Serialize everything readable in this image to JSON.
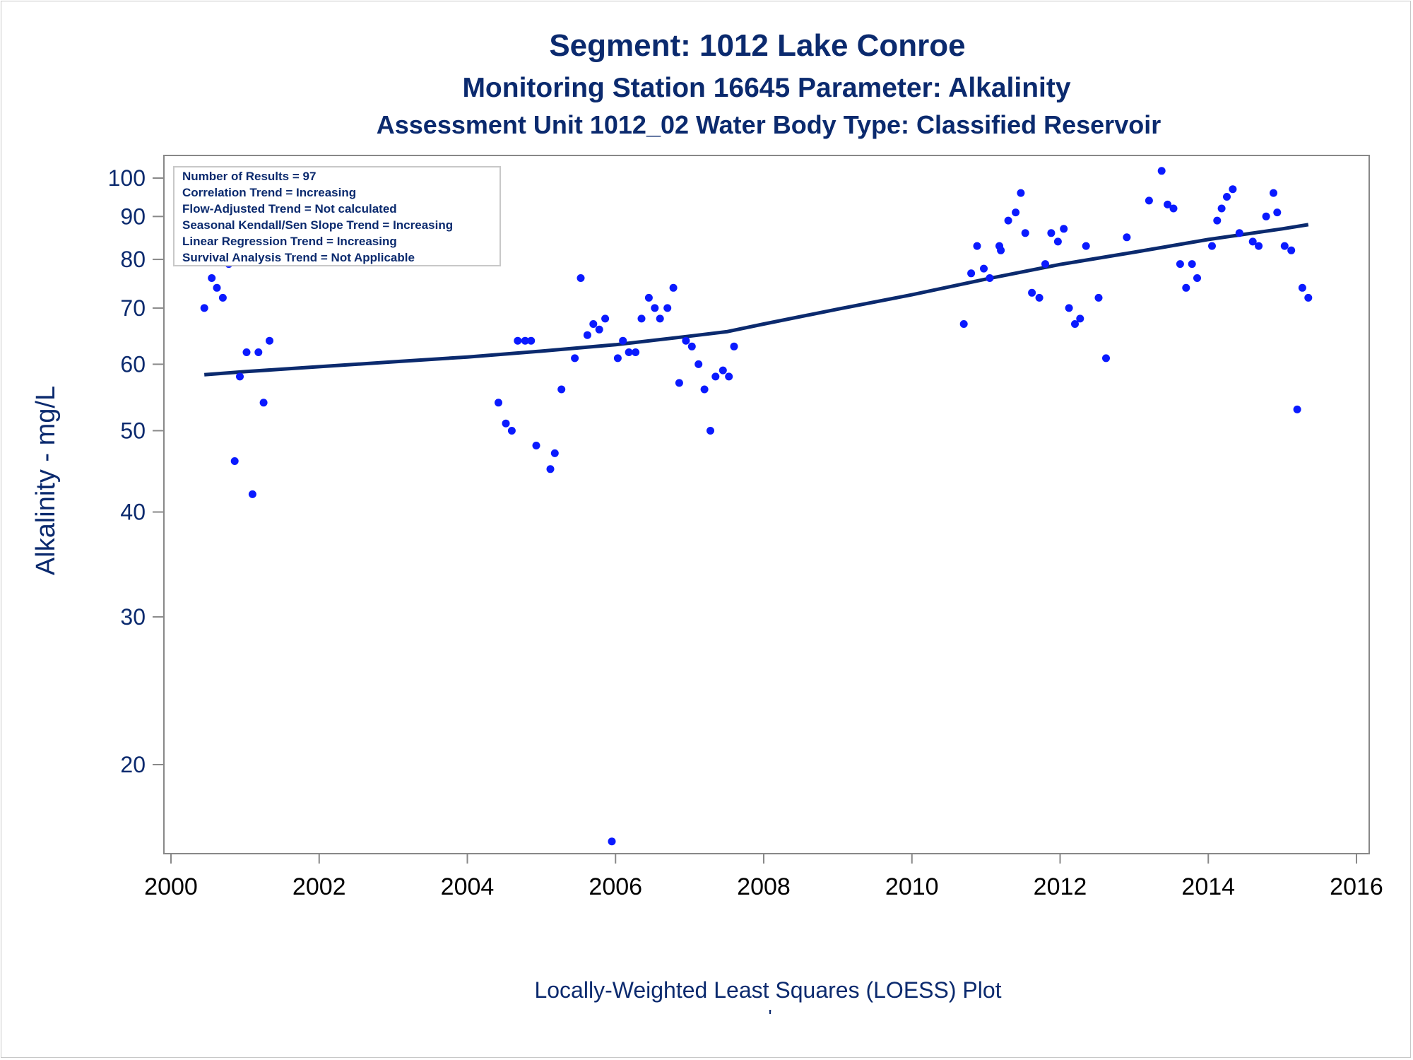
{
  "chart_data": {
    "type": "scatter",
    "title": "Segment: 1012  Lake Conroe",
    "subtitle_1": "Monitoring Station 16645 Parameter: Alkalinity",
    "subtitle_2": "Assessment Unit 1012_02   Water Body Type: Classified Reservoir",
    "ylabel": "Alkalinity - mg/L",
    "footnote": "Locally-Weighted Least Squares (LOESS) Plot",
    "footnote_mark": "'",
    "y_scale": "log",
    "xlim": [
      2000,
      2016
    ],
    "ylim": [
      16,
      105
    ],
    "x_ticks": [
      2000,
      2002,
      2004,
      2006,
      2008,
      2010,
      2012,
      2014,
      2016
    ],
    "y_ticks": [
      20,
      30,
      40,
      50,
      60,
      70,
      80,
      90,
      100
    ],
    "grid": false,
    "legend_placement": "top-left",
    "stats_box": [
      "Number of Results = 97",
      "Correlation Trend = Increasing",
      "Flow-Adjusted Trend = Not calculated",
      "Seasonal Kendall/Sen Slope Trend = Increasing",
      "Linear Regression Trend = Increasing",
      "Survival Analysis Trend = Not Applicable"
    ],
    "colors": {
      "points": "#0a1aff",
      "trend_line": "#0b2a6e",
      "text": "#0b2a6e",
      "axis": "#888888"
    },
    "points": [
      [
        2000.45,
        70
      ],
      [
        2000.55,
        76
      ],
      [
        2000.62,
        74
      ],
      [
        2000.7,
        72
      ],
      [
        2000.78,
        79
      ],
      [
        2000.86,
        46
      ],
      [
        2000.93,
        58
      ],
      [
        2001.02,
        62
      ],
      [
        2001.1,
        42
      ],
      [
        2001.18,
        62
      ],
      [
        2001.25,
        54
      ],
      [
        2001.33,
        64
      ],
      [
        2004.42,
        54
      ],
      [
        2004.52,
        51
      ],
      [
        2004.6,
        50
      ],
      [
        2004.68,
        64
      ],
      [
        2004.78,
        64
      ],
      [
        2004.86,
        64
      ],
      [
        2004.93,
        48
      ],
      [
        2005.12,
        45
      ],
      [
        2005.18,
        47
      ],
      [
        2005.27,
        56
      ],
      [
        2005.45,
        61
      ],
      [
        2005.53,
        76
      ],
      [
        2005.62,
        65
      ],
      [
        2005.7,
        67
      ],
      [
        2005.78,
        66
      ],
      [
        2005.86,
        68
      ],
      [
        2005.95,
        16.2
      ],
      [
        2006.03,
        61
      ],
      [
        2006.1,
        64
      ],
      [
        2006.18,
        62
      ],
      [
        2006.27,
        62
      ],
      [
        2006.35,
        68
      ],
      [
        2006.45,
        72
      ],
      [
        2006.53,
        70
      ],
      [
        2006.6,
        68
      ],
      [
        2006.7,
        70
      ],
      [
        2006.78,
        74
      ],
      [
        2006.86,
        57
      ],
      [
        2006.95,
        64
      ],
      [
        2007.03,
        63
      ],
      [
        2007.12,
        60
      ],
      [
        2007.2,
        56
      ],
      [
        2007.28,
        50
      ],
      [
        2007.35,
        58
      ],
      [
        2007.45,
        59
      ],
      [
        2007.53,
        58
      ],
      [
        2007.6,
        63
      ],
      [
        2010.7,
        67
      ],
      [
        2010.8,
        77
      ],
      [
        2010.88,
        83
      ],
      [
        2010.97,
        78
      ],
      [
        2011.05,
        76
      ],
      [
        2011.18,
        83
      ],
      [
        2011.2,
        82
      ],
      [
        2011.3,
        89
      ],
      [
        2011.4,
        91
      ],
      [
        2011.47,
        96
      ],
      [
        2011.53,
        86
      ],
      [
        2011.62,
        73
      ],
      [
        2011.72,
        72
      ],
      [
        2011.8,
        79
      ],
      [
        2011.88,
        86
      ],
      [
        2011.97,
        84
      ],
      [
        2012.05,
        87
      ],
      [
        2012.12,
        70
      ],
      [
        2012.2,
        67
      ],
      [
        2012.27,
        68
      ],
      [
        2012.35,
        83
      ],
      [
        2012.52,
        72
      ],
      [
        2012.62,
        61
      ],
      [
        2012.9,
        85
      ],
      [
        2013.2,
        94
      ],
      [
        2013.37,
        102
      ],
      [
        2013.45,
        93
      ],
      [
        2013.53,
        92
      ],
      [
        2013.62,
        79
      ],
      [
        2013.7,
        74
      ],
      [
        2013.78,
        79
      ],
      [
        2013.85,
        76
      ],
      [
        2014.05,
        83
      ],
      [
        2014.12,
        89
      ],
      [
        2014.18,
        92
      ],
      [
        2014.25,
        95
      ],
      [
        2014.33,
        97
      ],
      [
        2014.42,
        86
      ],
      [
        2014.6,
        84
      ],
      [
        2014.68,
        83
      ],
      [
        2014.78,
        90
      ],
      [
        2014.88,
        96
      ],
      [
        2014.93,
        91
      ],
      [
        2015.03,
        83
      ],
      [
        2015.12,
        82
      ],
      [
        2015.2,
        53
      ],
      [
        2015.27,
        74
      ],
      [
        2015.35,
        72
      ]
    ],
    "trend": {
      "name": "LOESS",
      "x": [
        2000.45,
        2001,
        2002,
        2003,
        2004,
        2005,
        2006,
        2007,
        2007.5,
        2008,
        2009,
        2010,
        2011,
        2012,
        2013,
        2014,
        2015,
        2015.35
      ],
      "y": [
        58.3,
        58.8,
        59.6,
        60.4,
        61.2,
        62.2,
        63.3,
        64.8,
        65.6,
        67.0,
        69.8,
        72.6,
        75.8,
        78.9,
        81.6,
        84.5,
        87.0,
        88.0
      ]
    }
  }
}
